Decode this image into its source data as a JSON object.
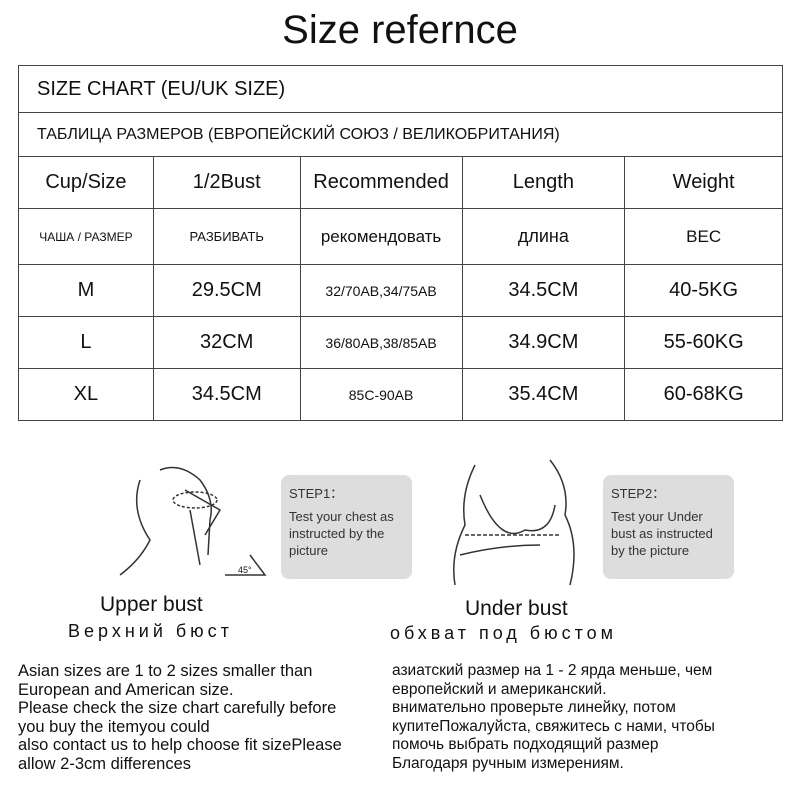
{
  "title": "Size refernce",
  "table": {
    "title_en": "SIZE CHART  (EU/UK SIZE)",
    "title_ru": "ТАБЛИЦА РАЗМЕРОВ (ЕВРОПЕЙСКИЙ СОЮЗ / ВЕЛИКОБРИТАНИЯ)",
    "headers": [
      "Cup/Size",
      "1/2Bust",
      "Recommended",
      "Length",
      "Weight"
    ],
    "headers_ru": [
      "ЧАША / РАЗМЕР",
      "РАЗБИВАТЬ",
      "рекомендовать",
      "длина",
      "ВЕС"
    ],
    "rows": [
      [
        "M",
        "29.5CM",
        "32/70AB,34/75AB",
        "34.5CM",
        "40-5KG"
      ],
      [
        "L",
        "32CM",
        "36/80AB,38/85AB",
        "34.9CM",
        "55-60KG"
      ],
      [
        "XL",
        "34.5CM",
        "85C-90AB",
        "35.4CM",
        "60-68KG"
      ]
    ]
  },
  "step1": {
    "heading": "STEP1：",
    "text": "Test your chest as instructed by the picture",
    "angle": "45°"
  },
  "step2": {
    "heading": "STEP2：",
    "text": "Test your Under bust as instructed by the picture"
  },
  "captions": {
    "upper_en": "Upper bust",
    "upper_ru": "Верхний бюст",
    "under_en": "Under bust",
    "under_ru": "обхват под бюстом"
  },
  "notes": {
    "en": [
      "Asian sizes are 1 to 2 sizes smaller than",
      "European and American size.",
      "Please check the size chart carefully before",
      "you buy the itemyou could",
      "also contact us to help choose fit sizePlease",
      "allow 2-3cm differences"
    ],
    "ru": [
      "азиатский размер на 1 - 2 ярда меньше, чем",
      "европейский и американский.",
      "внимательно проверьте линейку, потом",
      "купитеПожалуйста, свяжитесь с нами, чтобы",
      "помочь выбрать подходящий размер",
      "Благодаря ручным измерениям."
    ]
  }
}
